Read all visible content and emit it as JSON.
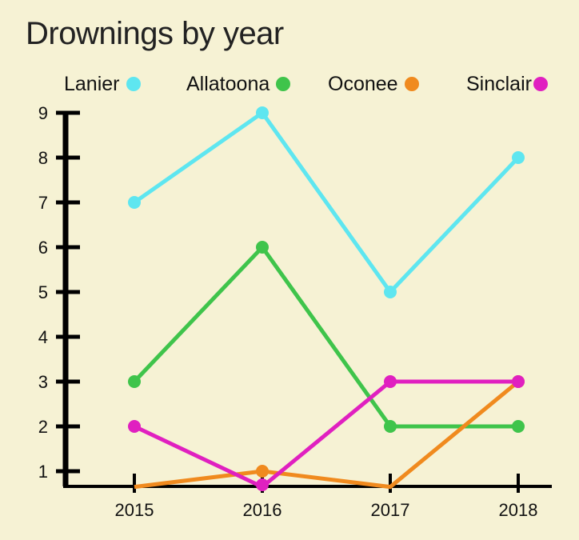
{
  "chart_data": {
    "type": "line",
    "title": "Drownings by year",
    "categories": [
      "2015",
      "2016",
      "2017",
      "2018"
    ],
    "ylim": [
      0.65,
      9
    ],
    "yticks": [
      1,
      2,
      3,
      4,
      5,
      6,
      7,
      8,
      9
    ],
    "grid": false,
    "legend_position": "top",
    "series": [
      {
        "name": "Lanier",
        "color": "#5ee6f0",
        "values": [
          7,
          9,
          5,
          8
        ]
      },
      {
        "name": "Allatoona",
        "color": "#3fc44b",
        "values": [
          3,
          6,
          2,
          2
        ]
      },
      {
        "name": "Oconee",
        "color": "#f08a1e",
        "values": [
          0.65,
          1,
          0.65,
          3
        ]
      },
      {
        "name": "Sinclair",
        "color": "#e020c0",
        "values": [
          2,
          0.65,
          3,
          3
        ]
      }
    ]
  }
}
